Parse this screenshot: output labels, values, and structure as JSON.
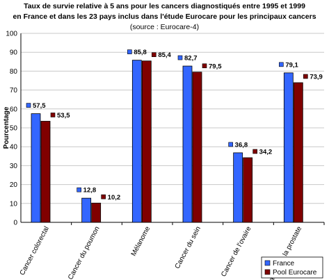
{
  "chart_data": {
    "type": "bar",
    "title_lines": [
      "Taux de survie relative à 5 ans pour les cancers diagnostiqués entre 1995 et 1999",
      "en France et dans les 23 pays inclus dans l'étude Eurocare pour les principaux cancers"
    ],
    "subtitle": "(source : Eurocare-4)",
    "ylabel": "Pourcentage",
    "xlabel": "",
    "ylim": [
      0,
      100
    ],
    "yticks": [
      0,
      10,
      20,
      30,
      40,
      50,
      60,
      70,
      80,
      90,
      100
    ],
    "grid": "horizontal",
    "legend_position": "bottom-right",
    "categories": [
      "Cancer colorectal",
      "Cancer du poumon",
      "Mélanome",
      "Cancer du sein",
      "Cancer de l'ovaire",
      "Cancer de la prostate"
    ],
    "series": [
      {
        "name": "France",
        "color": "#3366ff",
        "values": [
          57.5,
          12.8,
          85.8,
          82.7,
          36.8,
          79.1
        ],
        "labels": [
          "57,5",
          "12,8",
          "85,8",
          "82,7",
          "36,8",
          "79,1"
        ]
      },
      {
        "name": "Pool Eurocare",
        "color": "#800000",
        "values": [
          53.5,
          10.2,
          85.4,
          79.5,
          34.2,
          73.9
        ],
        "labels": [
          "53,5",
          "10,2",
          "85,4",
          "79,5",
          "34,2",
          "73,9"
        ]
      }
    ]
  }
}
